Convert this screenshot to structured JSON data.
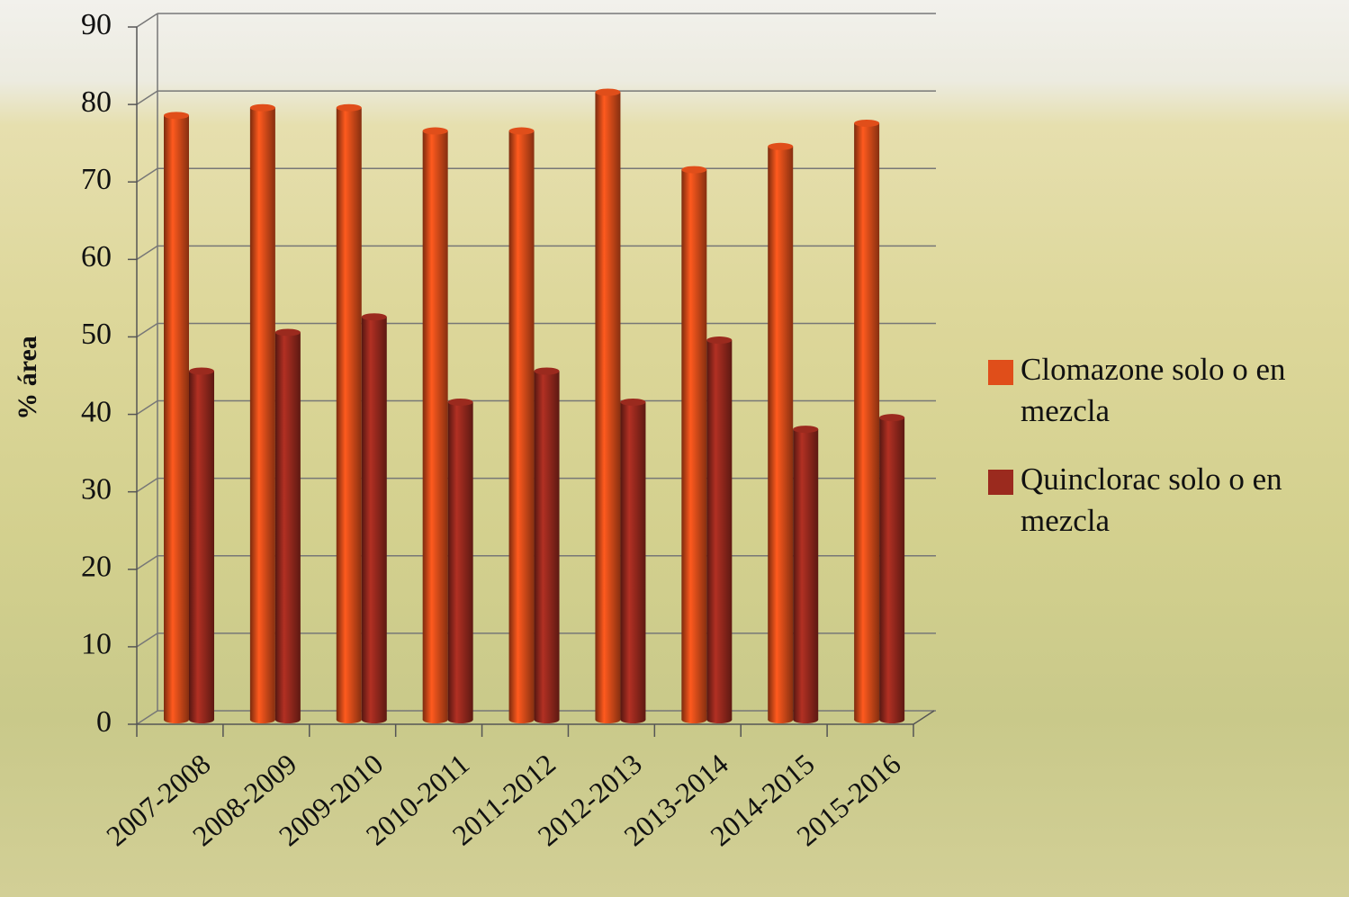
{
  "chart_data": {
    "type": "bar3d",
    "y_axis_label": "% área",
    "categories": [
      "2007-2008",
      "2008-2009",
      "2009-2010",
      "2010-2011",
      "2011-2012",
      "2012-2013",
      "2013-2014",
      "2014-2015",
      "2015-2016"
    ],
    "series": [
      {
        "name": "Clomazone solo o en mezcla",
        "color": "#e04e1a",
        "values": [
          78,
          79,
          79,
          76,
          76,
          81,
          71,
          74,
          77
        ]
      },
      {
        "name": "Quinclorac solo o en mezcla",
        "color": "#9b2a1e",
        "values": [
          45,
          50,
          52,
          41,
          45,
          41,
          49,
          37.5,
          39
        ]
      }
    ],
    "ylim": [
      0,
      90
    ],
    "yticks": [
      0,
      10,
      20,
      30,
      40,
      50,
      60,
      70,
      80,
      90
    ],
    "grid": true,
    "legend": "right"
  }
}
